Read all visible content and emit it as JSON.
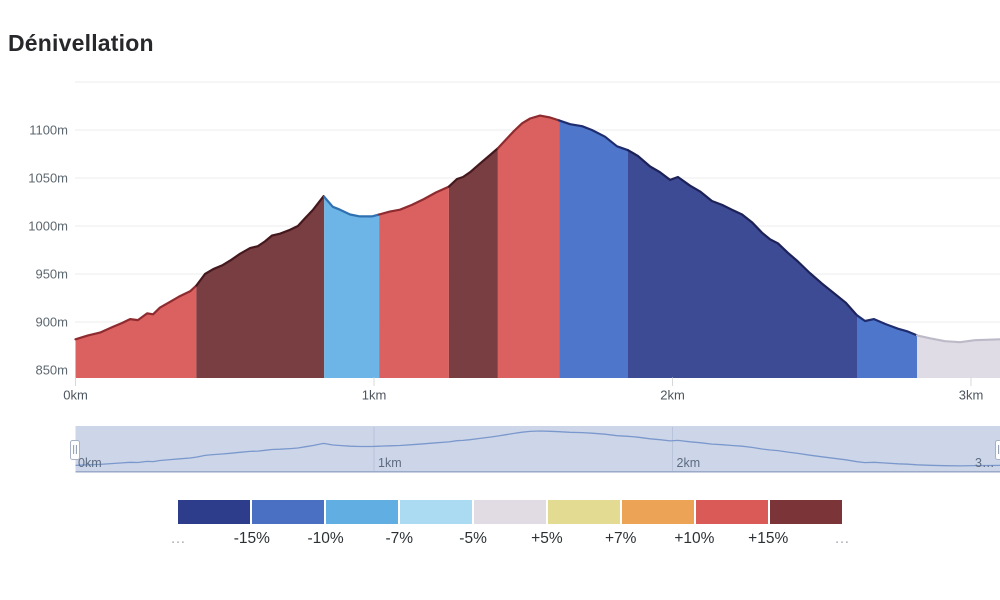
{
  "page": {
    "title": "Dénivellation",
    "background": "#ffffff"
  },
  "chart_data": {
    "type": "area",
    "title": "Dénivellation",
    "x_unit": "km",
    "y_unit": "m",
    "x_range_km": [
      0,
      3.1
    ],
    "y_range_m": [
      841,
      1150
    ],
    "grid": true,
    "y_gridlines_m": [
      1150,
      1100,
      1050,
      1000,
      950,
      900
    ],
    "y_ticks": [
      {
        "m": 1100,
        "label": "1100m"
      },
      {
        "m": 1050,
        "label": "1050m"
      },
      {
        "m": 1000,
        "label": "1000m"
      },
      {
        "m": 950,
        "label": "950m"
      },
      {
        "m": 900,
        "label": "900m"
      },
      {
        "m": 850,
        "label": "850m"
      }
    ],
    "x_ticks": [
      {
        "km": 0,
        "label": "0km"
      },
      {
        "km": 1,
        "label": "1km"
      },
      {
        "km": 2,
        "label": "2km"
      },
      {
        "km": 3,
        "label": "3km"
      }
    ],
    "profile_km_m": [
      [
        0.0,
        882
      ],
      [
        0.042,
        886
      ],
      [
        0.082,
        889
      ],
      [
        0.126,
        895
      ],
      [
        0.156,
        899
      ],
      [
        0.183,
        903
      ],
      [
        0.209,
        902
      ],
      [
        0.24,
        909
      ],
      [
        0.26,
        908
      ],
      [
        0.283,
        915
      ],
      [
        0.317,
        921
      ],
      [
        0.35,
        927
      ],
      [
        0.384,
        932
      ],
      [
        0.405,
        938
      ],
      [
        0.434,
        950
      ],
      [
        0.461,
        955
      ],
      [
        0.491,
        959
      ],
      [
        0.518,
        964
      ],
      [
        0.551,
        971
      ],
      [
        0.585,
        977
      ],
      [
        0.611,
        979
      ],
      [
        0.635,
        984
      ],
      [
        0.658,
        990
      ],
      [
        0.685,
        992
      ],
      [
        0.719,
        996
      ],
      [
        0.745,
        1000
      ],
      [
        0.769,
        1008
      ],
      [
        0.796,
        1017
      ],
      [
        0.831,
        1031
      ],
      [
        0.862,
        1020
      ],
      [
        0.886,
        1017
      ],
      [
        0.92,
        1012
      ],
      [
        0.953,
        1010
      ],
      [
        0.993,
        1010
      ],
      [
        1.017,
        1012
      ],
      [
        1.053,
        1015
      ],
      [
        1.087,
        1017
      ],
      [
        1.127,
        1022
      ],
      [
        1.167,
        1028
      ],
      [
        1.208,
        1035
      ],
      [
        1.251,
        1041
      ],
      [
        1.278,
        1049
      ],
      [
        1.298,
        1051
      ],
      [
        1.322,
        1056
      ],
      [
        1.355,
        1065
      ],
      [
        1.389,
        1074
      ],
      [
        1.415,
        1081
      ],
      [
        1.442,
        1090
      ],
      [
        1.469,
        1099
      ],
      [
        1.496,
        1107
      ],
      [
        1.523,
        1112
      ],
      [
        1.556,
        1115
      ],
      [
        1.59,
        1113
      ],
      [
        1.62,
        1110
      ],
      [
        1.657,
        1106
      ],
      [
        1.697,
        1104
      ],
      [
        1.73,
        1100
      ],
      [
        1.774,
        1093
      ],
      [
        1.814,
        1083
      ],
      [
        1.851,
        1079
      ],
      [
        1.884,
        1073
      ],
      [
        1.925,
        1062
      ],
      [
        1.958,
        1056
      ],
      [
        1.992,
        1048
      ],
      [
        2.018,
        1051
      ],
      [
        2.059,
        1042
      ],
      [
        2.092,
        1036
      ],
      [
        2.132,
        1026
      ],
      [
        2.166,
        1022
      ],
      [
        2.199,
        1017
      ],
      [
        2.233,
        1012
      ],
      [
        2.266,
        1004
      ],
      [
        2.3,
        993
      ],
      [
        2.327,
        986
      ],
      [
        2.353,
        982
      ],
      [
        2.387,
        972
      ],
      [
        2.42,
        963
      ],
      [
        2.46,
        951
      ],
      [
        2.501,
        940
      ],
      [
        2.541,
        930
      ],
      [
        2.581,
        920
      ],
      [
        2.618,
        907
      ],
      [
        2.645,
        901
      ],
      [
        2.675,
        903
      ],
      [
        2.712,
        898
      ],
      [
        2.755,
        893
      ],
      [
        2.789,
        890
      ],
      [
        2.819,
        886
      ],
      [
        2.863,
        883
      ],
      [
        2.913,
        880
      ],
      [
        2.963,
        879
      ],
      [
        3.013,
        881
      ],
      [
        3.097,
        882
      ]
    ],
    "segments": [
      {
        "from": 0.0,
        "to": 0.405,
        "bucket": "+10% to +15%",
        "fill": "#DB6161",
        "stroke": "#8E2B2F"
      },
      {
        "from": 0.405,
        "to": 0.833,
        "bucket": "> +15%",
        "fill": "#783E42",
        "stroke": "#45181D"
      },
      {
        "from": 0.833,
        "to": 1.017,
        "bucket": "-10% to -7%",
        "fill": "#6CB5E6",
        "stroke": "#2F71B0"
      },
      {
        "from": 1.017,
        "to": 1.251,
        "bucket": "+10% to +15%",
        "fill": "#DB6161",
        "stroke": "#8E2B2F"
      },
      {
        "from": 1.251,
        "to": 1.415,
        "bucket": "> +15%",
        "fill": "#783E42",
        "stroke": "#45181D"
      },
      {
        "from": 1.415,
        "to": 1.62,
        "bucket": "+10% to +15%",
        "fill": "#DB6161",
        "stroke": "#8E2B2F"
      },
      {
        "from": 1.62,
        "to": 1.851,
        "bucket": "-15% to -10%",
        "fill": "#4E77CC",
        "stroke": "#1F2C6E"
      },
      {
        "from": 1.851,
        "to": 2.618,
        "bucket": "< -15%",
        "fill": "#3D4A94",
        "stroke": "#1C2258"
      },
      {
        "from": 2.618,
        "to": 2.819,
        "bucket": "-15% to -10%",
        "fill": "#4E77CC",
        "stroke": "#1F2C6E"
      },
      {
        "from": 2.819,
        "to": 3.097,
        "bucket": "-5% to +5%",
        "fill": "#DFDCE5",
        "stroke": "#BDBAC8"
      }
    ]
  },
  "overview": {
    "background": "#CDD6E9",
    "line_color": "#7B98CC",
    "border_color": "#94A4C4",
    "gridline_color": "#B9C3DA",
    "labels": [
      {
        "km": 0,
        "label": "0km"
      },
      {
        "km": 1,
        "label": "1km"
      },
      {
        "km": 2,
        "label": "2km"
      },
      {
        "km": 3,
        "label": "3…"
      }
    ]
  },
  "legend": {
    "colors": [
      "#2E3C8C",
      "#4A70C4",
      "#60AEE2",
      "#ABDAF3",
      "#E1DBE4",
      "#E4DB92",
      "#EDA355",
      "#D95A57",
      "#7B3438"
    ],
    "labels": [
      "…",
      "-15%",
      "-10%",
      "-7%",
      "-5%",
      "+5%",
      "+7%",
      "+10%",
      "+15%",
      "…"
    ],
    "muted_label_indexes": [
      0,
      9
    ]
  },
  "axis_style": {
    "label_color": "#5d6770",
    "gridline_color": "#ececec",
    "tick_color": "#d8d8d8"
  }
}
